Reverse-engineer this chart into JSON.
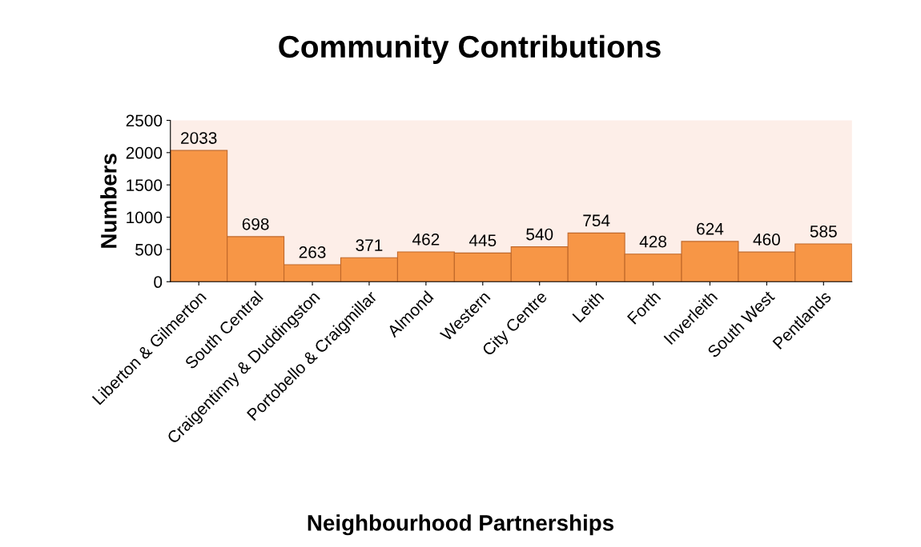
{
  "chart_data": {
    "type": "bar",
    "title": "Community Contributions",
    "xlabel": "Neighbourhood Partnerships",
    "ylabel": "Numbers",
    "categories": [
      "Liberton & Gilmerton",
      "South Central",
      "Craigentinny & Duddingston",
      "Portobello & Craigmillar",
      "Almond",
      "Western",
      "City Centre",
      "Leith",
      "Forth",
      "Inverleith",
      "South West",
      "Pentlands"
    ],
    "values": [
      2033,
      698,
      263,
      371,
      462,
      445,
      540,
      754,
      428,
      624,
      460,
      585
    ],
    "color": "#f79646",
    "ylim": [
      0,
      2500
    ],
    "yticks": [
      0,
      500,
      1000,
      1500,
      2000,
      2500
    ],
    "grid": false,
    "data_labels": true
  }
}
